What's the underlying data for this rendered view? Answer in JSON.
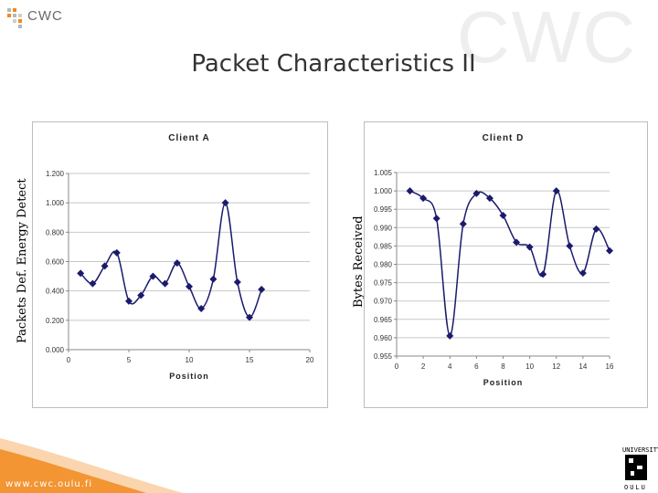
{
  "header": {
    "logo_text": "CWC",
    "watermark_text": "CWC",
    "title": "Packet Characteristics II"
  },
  "footer": {
    "url": "www.cwc.oulu.fi",
    "university_top": "UNIVERSITY",
    "university_bottom": "OULU"
  },
  "left_outer_label": "Packets Def. Energy Detect",
  "right_outer_label": "Bytes Received",
  "colors": {
    "marker": "#1a1a6e",
    "line": "#1a1a6e",
    "swoosh": "#f08a1c"
  },
  "chart_data": [
    {
      "type": "line",
      "title": "Client A",
      "xlabel": "Position",
      "ylabel": "",
      "xlim": [
        0,
        20
      ],
      "ylim": [
        0,
        1.2
      ],
      "xticks": [
        0,
        5,
        10,
        15,
        20
      ],
      "yticks": [
        0,
        0.2,
        0.4,
        0.6,
        0.8,
        1.0,
        1.2
      ],
      "ytick_labels": [
        "0.000",
        "0.200",
        "0.400",
        "0.600",
        "0.800",
        "1.000",
        "1.200"
      ],
      "grid": "horizontal",
      "series": [
        {
          "x": [
            1,
            2,
            3,
            4,
            5,
            6,
            7,
            8,
            9,
            10,
            11,
            12,
            13,
            14,
            15,
            16
          ],
          "values": [
            0.52,
            0.45,
            0.57,
            0.66,
            0.33,
            0.37,
            0.5,
            0.45,
            0.59,
            0.43,
            0.28,
            0.48,
            1.0,
            0.46,
            0.22,
            0.41
          ]
        }
      ]
    },
    {
      "type": "line",
      "title": "Client D",
      "xlabel": "Position",
      "ylabel": "",
      "xlim": [
        0,
        16
      ],
      "ylim": [
        0.955,
        1.005
      ],
      "xticks": [
        0,
        2,
        4,
        6,
        8,
        10,
        12,
        14,
        16
      ],
      "yticks": [
        0.955,
        0.96,
        0.965,
        0.97,
        0.975,
        0.98,
        0.985,
        0.99,
        0.995,
        1.0,
        1.005
      ],
      "ytick_labels": [
        "0.955",
        "0.960",
        "0.965",
        "0.970",
        "0.975",
        "0.980",
        "0.985",
        "0.990",
        "0.995",
        "1.000",
        "1.005"
      ],
      "grid": "horizontal",
      "series": [
        {
          "x": [
            1,
            2,
            3,
            4,
            5,
            6,
            7,
            8,
            9,
            10,
            11,
            12,
            13,
            14,
            15,
            16
          ],
          "values": [
            1.0,
            0.998,
            0.9925,
            0.9605,
            0.991,
            0.9993,
            0.998,
            0.9933,
            0.986,
            0.9847,
            0.9773,
            1.0,
            0.985,
            0.9776,
            0.9896,
            0.9837
          ]
        }
      ]
    }
  ]
}
